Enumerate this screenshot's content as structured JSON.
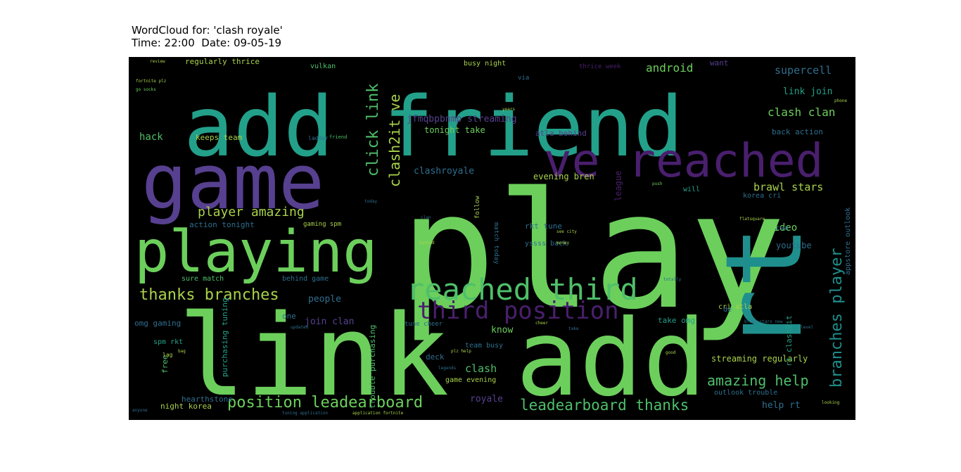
{
  "title": {
    "line1": "WordCloud for: 'clash royale'",
    "line2": "Time: 22:00  Date: 09-05-19"
  },
  "palette": {
    "bright_green": "#6ccf5c",
    "green": "#4fbf6a",
    "teal": "#23a08a",
    "dark_teal": "#1f8f8d",
    "purple": "#57408f",
    "dark_purple": "#4a1f6e",
    "lime": "#a9d24a",
    "blue": "#2e6f8e"
  },
  "words": [
    "play",
    "add friend",
    "game",
    "link",
    "add",
    "rt",
    "playing",
    "ve reached",
    "reached third",
    "third position",
    "position leadearboard",
    "leadearboard thanks",
    "thanks branches",
    "player amazing",
    "branches player",
    "amazing help",
    "click link",
    "clash2it ve",
    "clash clan",
    "supercell",
    "android",
    "link join",
    "jfmqbpbnmp streaming",
    "clashroyale",
    "brawl stars",
    "video",
    "youtube",
    "hack",
    "keeps team",
    "join clan",
    "people",
    "clash",
    "know",
    "royale",
    "streaming regularly",
    "rt clash2it",
    "help rt",
    "tonight take",
    "evening bren",
    "league",
    "atla behind",
    "action tonight",
    "gaming spm",
    "busy night",
    "vulkan",
    "regularly thrice",
    "thrice week",
    "want",
    "back action",
    "korea cri",
    "cwa",
    "will",
    "cri atla",
    "take omg",
    "omg gaming",
    "spm rkt",
    "free",
    "hearthstone",
    "night korea",
    "game evening",
    "team busy",
    "deck",
    "trouble purchasing",
    "purchasing tuning",
    "outlook trouble",
    "appstore outlook",
    "rkt tune",
    "yssss back",
    "sure match",
    "behind game",
    "follow",
    "match today",
    "one",
    "tune cheer",
    "de",
    "lag",
    "ladder",
    "friend",
    "today",
    "clan",
    "money",
    "banned",
    "push",
    "totally",
    "updated",
    "legends",
    "good",
    "fortnite plz",
    "go socks",
    "review",
    "tuning application",
    "application fortnite",
    "anyone",
    "looking",
    "phone",
    "via",
    "years",
    "level",
    "plz help",
    "flatsquare",
    "brawl stars new",
    "see city",
    "cheer",
    "take",
    "bag"
  ]
}
